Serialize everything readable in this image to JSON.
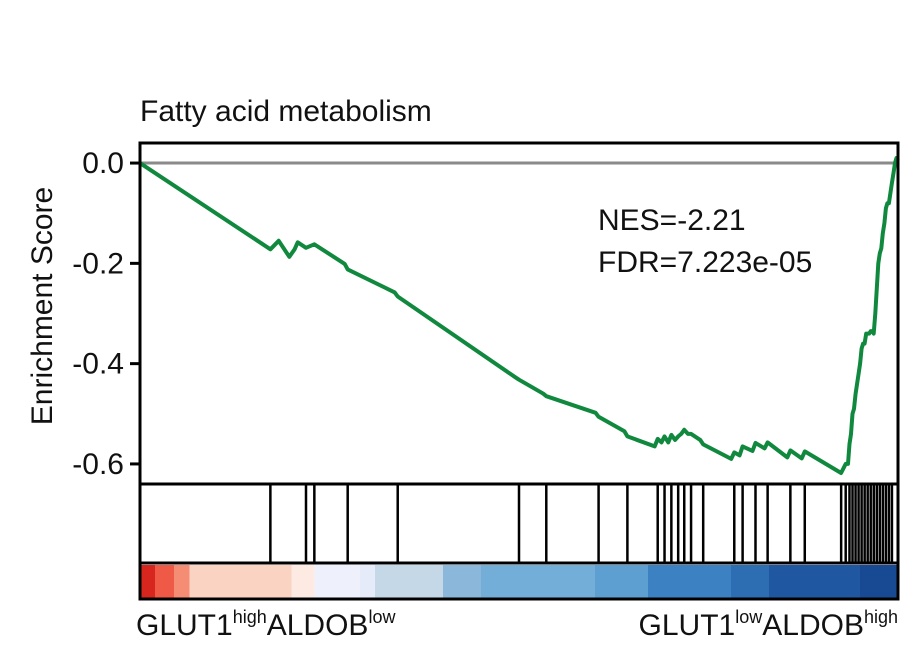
{
  "chart_data": {
    "type": "line",
    "title": "Fatty acid metabolism",
    "ylabel": "Enrichment Score",
    "xlabel": "",
    "ylim": [
      -0.64,
      0.04
    ],
    "xlim": [
      0,
      1
    ],
    "yticks": [
      0.0,
      -0.2,
      -0.4,
      -0.6
    ],
    "ytick_labels": [
      "0.0",
      "-0.2",
      "-0.4",
      "-0.6"
    ],
    "zero_line": true,
    "annotations": [
      "NES=-2.21",
      "FDR=7.223e-05"
    ],
    "left_group": {
      "base": "GLUT1",
      "sup1": "high",
      "mid": "ALDOB",
      "sup2": "low"
    },
    "right_group": {
      "base": "GLUT1",
      "sup1": "low",
      "mid": "ALDOB",
      "sup2": "high"
    },
    "series": [
      {
        "color": "#10893e",
        "x": [
          0.0,
          0.172,
          0.183,
          0.197,
          0.204,
          0.208,
          0.219,
          0.23,
          0.27,
          0.274,
          0.336,
          0.34,
          0.495,
          0.5,
          0.532,
          0.536,
          0.601,
          0.605,
          0.639,
          0.643,
          0.679,
          0.683,
          0.688,
          0.692,
          0.697,
          0.701,
          0.706,
          0.71,
          0.714,
          0.718,
          0.723,
          0.727,
          0.739,
          0.743,
          0.78,
          0.784,
          0.791,
          0.795,
          0.808,
          0.812,
          0.824,
          0.828,
          0.854,
          0.858,
          0.873,
          0.877,
          0.925,
          0.931,
          0.934,
          0.936,
          0.938,
          0.94,
          0.942,
          0.944,
          0.946,
          0.948,
          0.95,
          0.952,
          0.954,
          0.956,
          0.958,
          0.96,
          0.962,
          0.964,
          0.966,
          0.968,
          0.97,
          0.972,
          0.974,
          0.976,
          0.978,
          0.98,
          0.982,
          0.984,
          0.986,
          0.988,
          0.99,
          0.992,
          0.994,
          0.996,
          0.998,
          1.0
        ],
        "values": [
          0.0,
          -0.172,
          -0.155,
          -0.187,
          -0.172,
          -0.158,
          -0.169,
          -0.162,
          -0.201,
          -0.212,
          -0.258,
          -0.266,
          -0.427,
          -0.432,
          -0.46,
          -0.465,
          -0.498,
          -0.506,
          -0.535,
          -0.545,
          -0.565,
          -0.55,
          -0.557,
          -0.545,
          -0.557,
          -0.542,
          -0.552,
          -0.545,
          -0.54,
          -0.532,
          -0.54,
          -0.54,
          -0.552,
          -0.561,
          -0.59,
          -0.577,
          -0.583,
          -0.565,
          -0.574,
          -0.558,
          -0.569,
          -0.557,
          -0.587,
          -0.573,
          -0.589,
          -0.575,
          -0.618,
          -0.6,
          -0.6,
          -0.56,
          -0.54,
          -0.5,
          -0.49,
          -0.46,
          -0.44,
          -0.42,
          -0.4,
          -0.37,
          -0.36,
          -0.36,
          -0.34,
          -0.34,
          -0.34,
          -0.335,
          -0.335,
          -0.34,
          -0.3,
          -0.25,
          -0.2,
          -0.18,
          -0.17,
          -0.14,
          -0.12,
          -0.09,
          -0.08,
          -0.08,
          -0.06,
          -0.04,
          -0.02,
          0.0,
          0.01,
          0.005
        ]
      }
    ],
    "hits": [
      0.172,
      0.219,
      0.23,
      0.274,
      0.34,
      0.5,
      0.536,
      0.605,
      0.643,
      0.683,
      0.692,
      0.701,
      0.71,
      0.718,
      0.727,
      0.743,
      0.784,
      0.795,
      0.812,
      0.828,
      0.858,
      0.877,
      0.925,
      0.931,
      0.936,
      0.94,
      0.944,
      0.948,
      0.952,
      0.956,
      0.96,
      0.964,
      0.968,
      0.972,
      0.976,
      0.98,
      0.984,
      0.988,
      0.992
    ],
    "ranking_colors": [
      "#d7261e",
      "#ee5a45",
      "#f58c74",
      "#fbd3c3",
      "#fdebe3",
      "#eef1fb",
      "#e5ebf8",
      "#c4d8e8",
      "#8ab7da",
      "#73aed8",
      "#5e9fd1",
      "#3c82c2",
      "#2d6db2",
      "#1f58a1",
      "#174a92"
    ],
    "ranking_stops": [
      0.0,
      0.02,
      0.045,
      0.065,
      0.2,
      0.23,
      0.29,
      0.31,
      0.4,
      0.45,
      0.6,
      0.67,
      0.78,
      0.83,
      0.95,
      1.0
    ]
  }
}
